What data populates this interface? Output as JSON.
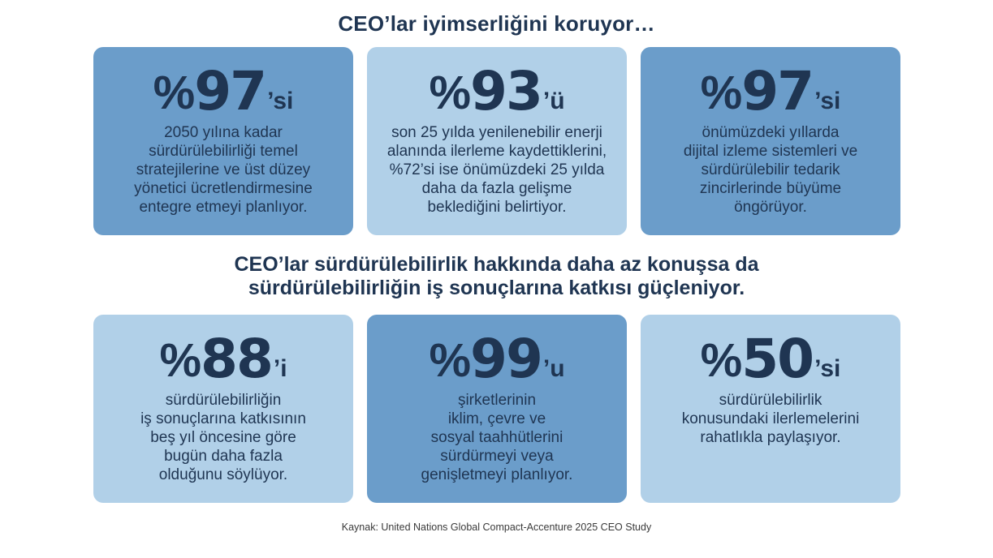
{
  "section1": {
    "title": "CEO’lar iyimserliğini koruyor…",
    "cards": [
      {
        "style": "dark",
        "percent_sign": "%",
        "value": "97",
        "suffix": "’si",
        "lines": [
          "2050 yılına kadar",
          "sürdürülebilirliği temel",
          "stratejilerine ve üst düzey",
          "yönetici ücretlendirmesine",
          "entegre etmeyi planlıyor."
        ]
      },
      {
        "style": "light",
        "percent_sign": "%",
        "value": "93",
        "suffix": "’ü",
        "lines": [
          "son 25 yılda yenilenebilir enerji",
          "alanında ilerleme kaydettiklerini,",
          "%72’si ise önümüzdeki 25 yılda",
          "daha da fazla gelişme",
          "beklediğini belirtiyor."
        ]
      },
      {
        "style": "dark",
        "percent_sign": "%",
        "value": "97",
        "suffix": "’si",
        "lines": [
          "önümüzdeki yıllarda",
          "dijital izleme sistemleri ve",
          "sürdürülebilir tedarik",
          "zincirlerinde büyüme",
          "öngörüyor."
        ]
      }
    ]
  },
  "section2": {
    "title_lines": [
      "CEO’lar sürdürülebilirlik hakkında daha az konuşsa da",
      "sürdürülebilirliğin iş sonuçlarına katkısı güçleniyor."
    ],
    "cards": [
      {
        "style": "light",
        "percent_sign": "%",
        "value": "88",
        "suffix": "’i",
        "lines": [
          "sürdürülebilirliğin",
          "iş sonuçlarına katkısının",
          "beş yıl öncesine göre",
          "bugün daha fazla",
          "olduğunu söylüyor."
        ]
      },
      {
        "style": "dark",
        "percent_sign": "%",
        "value": "99",
        "suffix": "’u",
        "lines": [
          "şirketlerinin",
          "iklim, çevre ve",
          "sosyal taahhütlerini",
          "sürdürmeyi veya",
          "genişletmeyi planlıyor."
        ]
      },
      {
        "style": "light",
        "percent_sign": "%",
        "value": "50",
        "suffix": "’si",
        "lines": [
          "sürdürülebilirlik",
          "konusundaki ilerlemelerini",
          "rahatlıkla paylaşıyor."
        ]
      }
    ]
  },
  "source": "Kaynak: United Nations Global Compact-Accenture 2025 CEO Study",
  "colors": {
    "card_dark": "#6b9dca",
    "card_light": "#b1d0e8",
    "text_navy": "#1f3552",
    "background": "#ffffff"
  }
}
